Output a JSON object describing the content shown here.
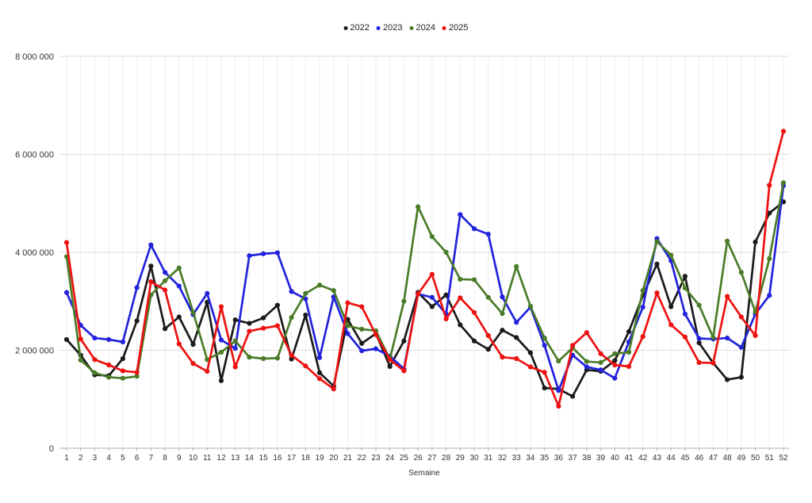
{
  "chart_data": {
    "type": "line",
    "title": "",
    "xlabel": "Semaine",
    "ylabel": "",
    "ylim": [
      0,
      8000000
    ],
    "grid": true,
    "legend_position": "top-center",
    "y_ticks": [
      0,
      2000000,
      4000000,
      6000000,
      8000000
    ],
    "y_tick_labels": [
      "0",
      "2 000 000",
      "4 000 000",
      "6 000 000",
      "8 000 000"
    ],
    "categories": [
      "1",
      "2",
      "3",
      "4",
      "5",
      "6",
      "7",
      "8",
      "9",
      "10",
      "11",
      "12",
      "13",
      "14",
      "15",
      "16",
      "17",
      "18",
      "19",
      "20",
      "21",
      "22",
      "23",
      "24",
      "25",
      "26",
      "27",
      "28",
      "29",
      "30",
      "31",
      "32",
      "33",
      "34",
      "35",
      "36",
      "37",
      "38",
      "39",
      "40",
      "41",
      "42",
      "43",
      "44",
      "45",
      "46",
      "47",
      "48",
      "49",
      "50",
      "51",
      "52"
    ],
    "series": [
      {
        "name": "2022",
        "color": "#1a1a1a",
        "values": [
          2220000,
          1900000,
          1500000,
          1480000,
          1830000,
          2600000,
          3720000,
          2440000,
          2680000,
          2120000,
          2980000,
          1380000,
          2620000,
          2550000,
          2660000,
          2920000,
          1820000,
          2720000,
          1540000,
          1270000,
          2630000,
          2140000,
          2340000,
          1670000,
          2190000,
          3180000,
          2890000,
          3130000,
          2520000,
          2190000,
          2020000,
          2410000,
          2260000,
          1950000,
          1230000,
          1210000,
          1060000,
          1600000,
          1570000,
          1790000,
          2380000,
          3120000,
          3760000,
          2890000,
          3510000,
          2150000,
          1740000,
          1400000,
          1450000,
          4210000,
          4800000,
          5030000
        ]
      },
      {
        "name": "2023",
        "color": "#2222dd",
        "values": [
          3180000,
          2510000,
          2250000,
          2220000,
          2170000,
          3280000,
          4150000,
          3590000,
          3310000,
          2730000,
          3160000,
          2210000,
          2040000,
          3930000,
          3970000,
          3990000,
          3200000,
          3050000,
          1850000,
          3090000,
          2340000,
          1990000,
          2030000,
          1880000,
          1620000,
          3150000,
          3080000,
          2740000,
          4770000,
          4480000,
          4370000,
          3090000,
          2570000,
          2880000,
          2100000,
          1180000,
          1900000,
          1660000,
          1600000,
          1430000,
          2170000,
          2880000,
          4280000,
          3830000,
          2740000,
          2240000,
          2230000,
          2250000,
          2060000,
          2740000,
          3120000,
          5360000
        ]
      },
      {
        "name": "2024",
        "color": "#4a7c28",
        "values": [
          3910000,
          1800000,
          1540000,
          1450000,
          1430000,
          1470000,
          3130000,
          3420000,
          3680000,
          2780000,
          1810000,
          1960000,
          2190000,
          1860000,
          1830000,
          1840000,
          2670000,
          3160000,
          3330000,
          3220000,
          2500000,
          2430000,
          2400000,
          1820000,
          3000000,
          4930000,
          4320000,
          4000000,
          3450000,
          3440000,
          3080000,
          2750000,
          3710000,
          2900000,
          2250000,
          1780000,
          2050000,
          1770000,
          1750000,
          1930000,
          1960000,
          3220000,
          4220000,
          3940000,
          3270000,
          2920000,
          2260000,
          4230000,
          3590000,
          2780000,
          3870000,
          5420000
        ]
      },
      {
        "name": "2025",
        "color": "#ee1111",
        "values": [
          4200000,
          2230000,
          1810000,
          1700000,
          1580000,
          1550000,
          3400000,
          3230000,
          2130000,
          1730000,
          1570000,
          2890000,
          1660000,
          2390000,
          2450000,
          2500000,
          1900000,
          1680000,
          1420000,
          1210000,
          2970000,
          2890000,
          2320000,
          1810000,
          1580000,
          3150000,
          3550000,
          2640000,
          3070000,
          2770000,
          2300000,
          1860000,
          1830000,
          1660000,
          1550000,
          860000,
          2100000,
          2360000,
          1930000,
          1700000,
          1670000,
          2280000,
          3170000,
          2520000,
          2270000,
          1750000,
          1740000,
          3100000,
          2680000,
          2300000,
          5370000,
          6470000
        ]
      }
    ]
  },
  "styles": {
    "grid_vertical_color": "#ededed",
    "grid_horizontal_color": "#dedede",
    "axis_line_color": "#b0b0b0",
    "tick_label_color": "#333333",
    "background": "#ffffff"
  }
}
